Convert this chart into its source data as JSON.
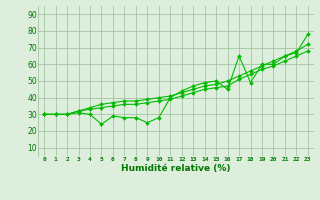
{
  "x": [
    0,
    1,
    2,
    3,
    4,
    5,
    6,
    7,
    8,
    9,
    10,
    11,
    12,
    13,
    14,
    15,
    16,
    17,
    18,
    19,
    20,
    21,
    22,
    23
  ],
  "line1": [
    30,
    30,
    30,
    31,
    30,
    24,
    29,
    28,
    28,
    25,
    28,
    40,
    44,
    47,
    49,
    50,
    45,
    65,
    49,
    60,
    60,
    65,
    67,
    78
  ],
  "line2": [
    30,
    30,
    30,
    32,
    33,
    34,
    35,
    36,
    36,
    37,
    38,
    39,
    41,
    43,
    45,
    46,
    47,
    51,
    54,
    57,
    59,
    62,
    65,
    68
  ],
  "line3": [
    30,
    30,
    30,
    32,
    34,
    36,
    37,
    38,
    38,
    39,
    40,
    41,
    43,
    45,
    47,
    48,
    50,
    53,
    56,
    59,
    62,
    65,
    68,
    72
  ],
  "bg_color": "#ddeedd",
  "line_color": "#00bb00",
  "grid_color": "#99bb99",
  "xlabel": "Humidité relative (%)",
  "xlim": [
    -0.5,
    23.5
  ],
  "ylim": [
    5,
    95
  ],
  "yticks": [
    10,
    20,
    30,
    40,
    50,
    60,
    70,
    80,
    90
  ],
  "xticks": [
    0,
    1,
    2,
    3,
    4,
    5,
    6,
    7,
    8,
    9,
    10,
    11,
    12,
    13,
    14,
    15,
    16,
    17,
    18,
    19,
    20,
    21,
    22,
    23
  ],
  "axis_label_color": "#007700",
  "tick_color": "#007700",
  "marker": "D",
  "markersize": 2.0,
  "linewidth": 0.8
}
